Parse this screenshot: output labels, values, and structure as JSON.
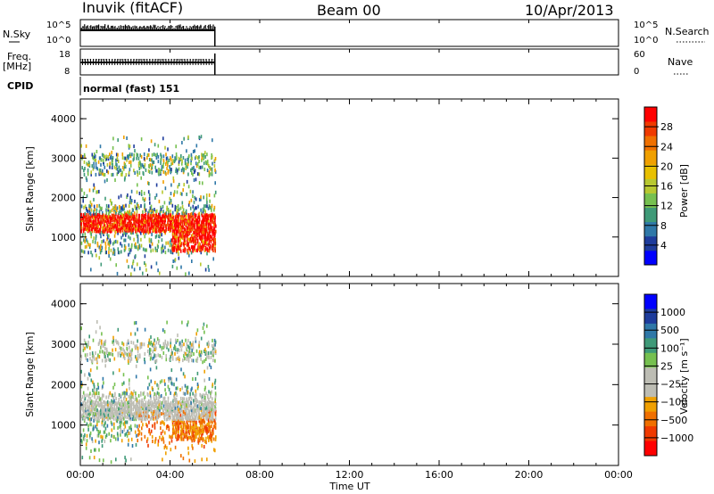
{
  "header": {
    "station": "Inuvik (fitACF)",
    "beam": "Beam 00",
    "date": "10/Apr/2013"
  },
  "side_labels": {
    "nsky": "N.Sky",
    "freq_line1": "Freq.",
    "freq_line2": "[MHz]",
    "cpid": "CPID",
    "nsearch": "N.Search",
    "nave": "Nave",
    "cpid_value": "normal (fast) 151"
  },
  "strip_ticks": {
    "noise_left": [
      "10^5",
      "10^0"
    ],
    "noise_right": [
      "10^5",
      "10^0"
    ],
    "freq_left": [
      "18",
      "8"
    ],
    "freq_right": [
      "60",
      "0"
    ]
  },
  "chart_data": [
    {
      "type": "heatmap",
      "name": "Power panel",
      "ylabel": "Slant Range [km]",
      "xlabel": "",
      "ylim": [
        0,
        4500
      ],
      "yticks": [
        1000,
        2000,
        3000,
        4000
      ],
      "xlim_hours": [
        0,
        24
      ],
      "data_extent_hours": [
        0,
        6
      ],
      "colorbar": {
        "label": "Power [dB]",
        "ticks": [
          "28",
          "24",
          "20",
          "16",
          "12",
          "8",
          "4"
        ],
        "colors": [
          "#0000ff",
          "#1e3c9c",
          "#2f78a8",
          "#3f9a78",
          "#76c050",
          "#b8c830",
          "#e8c000",
          "#f0a000",
          "#f07000",
          "#f03a00",
          "#ff0000"
        ]
      },
      "features": [
        {
          "range_km": [
            1150,
            1600
          ],
          "hours": [
            0.0,
            6.0
          ],
          "level": "strong"
        },
        {
          "range_km": [
            700,
            1100
          ],
          "hours": [
            4.0,
            6.0
          ],
          "level": "strong"
        },
        {
          "range_km": [
            2600,
            3100
          ],
          "hours": [
            0.0,
            6.0
          ],
          "level": "weak"
        },
        {
          "range_km": [
            1700,
            2100
          ],
          "hours": [
            0.3,
            5.0
          ],
          "level": "weak"
        }
      ]
    },
    {
      "type": "heatmap",
      "name": "Velocity panel",
      "ylabel": "Slant Range [km]",
      "xlabel": "Time UT",
      "ylim": [
        0,
        4500
      ],
      "yticks": [
        1000,
        2000,
        3000,
        4000
      ],
      "xticks": [
        "00:00",
        "04:00",
        "08:00",
        "12:00",
        "16:00",
        "20:00",
        "00:00"
      ],
      "colorbar": {
        "label": "Velocity [m s⁻¹]",
        "ticks": [
          "1000",
          "500",
          "100",
          "25",
          "−25",
          "−100",
          "−500",
          "−1000"
        ],
        "colors": [
          "#0000ff",
          "#1e3c9c",
          "#2f78a8",
          "#3f9a78",
          "#76c050",
          "#bdbdb4",
          "#bdbdb4",
          "#f0a000",
          "#f07000",
          "#f03a00",
          "#ff0000"
        ]
      },
      "features": [
        {
          "range_km": [
            1100,
            1800
          ],
          "hours": [
            0.0,
            6.0
          ],
          "level": "ground-scatter"
        },
        {
          "range_km": [
            600,
            1400
          ],
          "hours": [
            2.5,
            6.0
          ],
          "level": "negative"
        },
        {
          "range_km": [
            2600,
            3100
          ],
          "hours": [
            0.0,
            6.0
          ],
          "level": "mixed"
        }
      ]
    }
  ]
}
